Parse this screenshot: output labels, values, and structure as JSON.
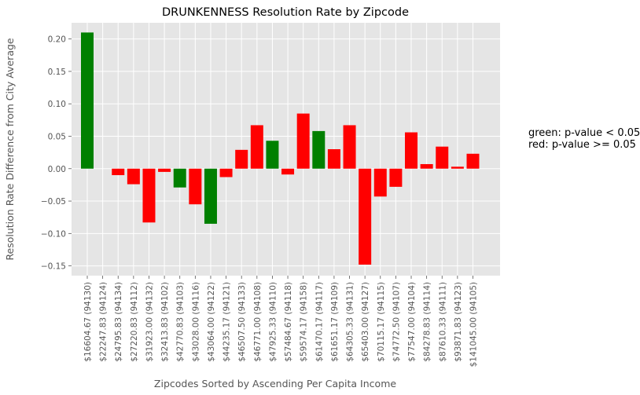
{
  "chart_data": {
    "type": "bar",
    "title": "DRUNKENNESS Resolution Rate by Zipcode",
    "xlabel": "Zipcodes Sorted by Ascending Per Capita Income",
    "ylabel": "Resolution Rate Difference from City Average",
    "ylim": [
      -0.165,
      0.225
    ],
    "yticks": [
      -0.15,
      -0.1,
      -0.05,
      0.0,
      0.05,
      0.1,
      0.15,
      0.2
    ],
    "ytick_labels": [
      "−0.15",
      "−0.10",
      "−0.05",
      "0.00",
      "0.05",
      "0.10",
      "0.15",
      "0.20"
    ],
    "grid": true,
    "categories": [
      "$16604.67  (94130)",
      "$22247.83  (94124)",
      "$24795.83  (94134)",
      "$27220.83  (94112)",
      "$31923.00  (94132)",
      "$32413.83  (94102)",
      "$42770.83  (94103)",
      "$43028.00  (94116)",
      "$43064.00  (94122)",
      "$44235.17  (94121)",
      "$46507.50  (94133)",
      "$46771.00  (94108)",
      "$47925.33  (94110)",
      "$57484.67  (94118)",
      "$59574.17  (94158)",
      "$61470.17  (94117)",
      "$61651.17  (94109)",
      "$64305.33  (94131)",
      "$65403.00  (94127)",
      "$70115.17  (94115)",
      "$74772.50  (94107)",
      "$77547.00  (94104)",
      "$84278.83  (94114)",
      "$87610.33  (94111)",
      "$93871.83  (94123)",
      "$141045.00  (94105)"
    ],
    "values": [
      0.21,
      0.0,
      -0.01,
      -0.024,
      -0.083,
      -0.005,
      -0.029,
      -0.055,
      -0.085,
      -0.013,
      0.029,
      0.067,
      0.043,
      -0.009,
      0.085,
      0.058,
      0.03,
      0.067,
      -0.148,
      -0.043,
      -0.028,
      0.056,
      0.007,
      0.034,
      0.003,
      0.023
    ],
    "significant": [
      true,
      false,
      false,
      false,
      false,
      false,
      true,
      false,
      true,
      false,
      false,
      false,
      true,
      false,
      false,
      true,
      false,
      false,
      false,
      false,
      false,
      false,
      false,
      false,
      false,
      false
    ],
    "colors": {
      "significant": "#008000",
      "not_significant": "#ff0000",
      "plot_bg": "#e5e5e5",
      "grid": "#ffffff",
      "text": "#555555",
      "title": "#000000"
    }
  },
  "side_notes": {
    "line1": "green: p-value < 0.05",
    "line2": "red: p-value >= 0.05"
  }
}
